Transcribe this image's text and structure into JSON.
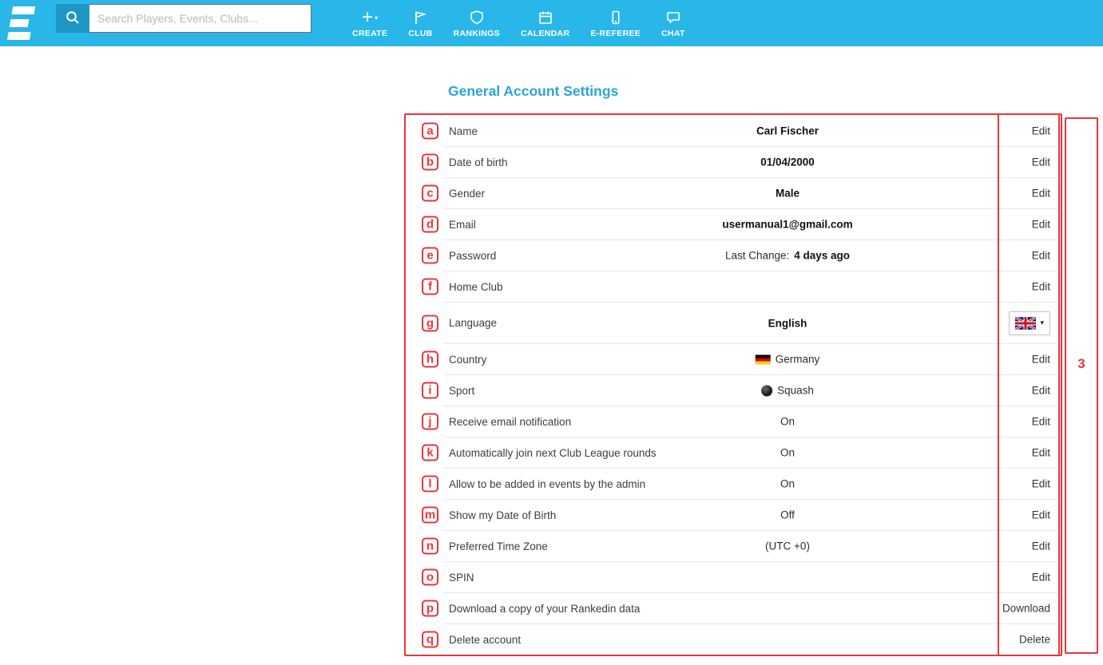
{
  "header": {
    "search": {
      "placeholder": "Search Players, Events, Clubs..."
    },
    "nav": [
      {
        "label": "CREATE",
        "icon": "plus-dropdown-icon"
      },
      {
        "label": "CLUB",
        "icon": "flag-icon"
      },
      {
        "label": "RANKINGS",
        "icon": "shield-icon"
      },
      {
        "label": "CALENDAR",
        "icon": "calendar-icon"
      },
      {
        "label": "E-REFEREE",
        "icon": "phone-icon"
      },
      {
        "label": "CHAT",
        "icon": "chat-bubble-icon"
      }
    ]
  },
  "page": {
    "title": "General Account Settings"
  },
  "settings": {
    "rows": [
      {
        "marker": "a",
        "label": "Name",
        "value": "Carl Fischer",
        "bold": true,
        "action": "Edit",
        "action_type": "link"
      },
      {
        "marker": "b",
        "label": "Date of birth",
        "value": "01/04/2000",
        "bold": true,
        "action": "Edit",
        "action_type": "link"
      },
      {
        "marker": "c",
        "label": "Gender",
        "value": "Male",
        "bold": true,
        "action": "Edit",
        "action_type": "link"
      },
      {
        "marker": "d",
        "label": "Email",
        "value": "usermanual1@gmail.com",
        "bold": true,
        "action": "Edit",
        "action_type": "link"
      },
      {
        "marker": "e",
        "label": "Password",
        "value_prefix": "Last Change: ",
        "value": "4 days ago",
        "action": "Edit",
        "action_type": "link"
      },
      {
        "marker": "f",
        "label": "Home Club",
        "value": "",
        "action": "Edit",
        "action_type": "link"
      },
      {
        "marker": "g",
        "label": "Language",
        "value": "English",
        "bold": true,
        "action": "",
        "action_type": "flag-dropdown",
        "flag": "united-kingdom"
      },
      {
        "marker": "h",
        "label": "Country",
        "value": "Germany",
        "icon": "germany-flag",
        "action": "Edit",
        "action_type": "link"
      },
      {
        "marker": "i",
        "label": "Sport",
        "value": "Squash",
        "icon": "ball",
        "action": "Edit",
        "action_type": "link"
      },
      {
        "marker": "j",
        "label": "Receive email notification",
        "value": "On",
        "action": "Edit",
        "action_type": "link"
      },
      {
        "marker": "k",
        "label": "Automatically join next Club League rounds",
        "value": "On",
        "action": "Edit",
        "action_type": "link"
      },
      {
        "marker": "l",
        "label": "Allow to be added in events by the admin",
        "value": "On",
        "action": "Edit",
        "action_type": "link"
      },
      {
        "marker": "m",
        "label": "Show my Date of Birth",
        "value": "Off",
        "action": "Edit",
        "action_type": "link"
      },
      {
        "marker": "n",
        "label": "Preferred Time Zone",
        "value": "(UTC +0)",
        "action": "Edit",
        "action_type": "link"
      },
      {
        "marker": "o",
        "label": "SPIN",
        "value": "",
        "action": "Edit",
        "action_type": "link"
      },
      {
        "marker": "p",
        "label": "Download a copy of your Rankedin data",
        "value": "",
        "action": "Download",
        "action_type": "link"
      },
      {
        "marker": "q",
        "label": "Delete account",
        "value": "",
        "action": "Delete",
        "action_type": "link"
      }
    ]
  },
  "annotations": {
    "right_box_label": "3",
    "letters": [
      "a",
      "b",
      "c",
      "d",
      "e",
      "f",
      "g",
      "h",
      "i",
      "j",
      "k",
      "l",
      "m",
      "n",
      "o",
      "p",
      "q"
    ]
  },
  "colors": {
    "header_bg": "#29b7ea",
    "search_button_bg": "#1f96c3",
    "title_accent": "#2aa5d8",
    "annotation_red": "#e8363c"
  }
}
